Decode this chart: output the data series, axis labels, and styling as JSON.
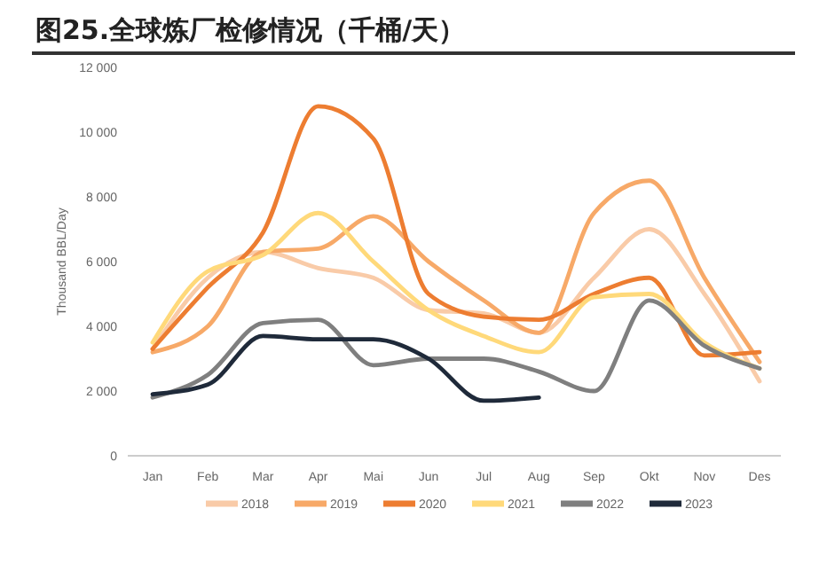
{
  "chart_data": {
    "type": "line",
    "title": "图25.全球炼厂检修情况（千桶/天）",
    "ylabel": "Thousand BBL/Day",
    "categories": [
      "Jan",
      "Feb",
      "Mar",
      "Apr",
      "Mai",
      "Jun",
      "Jul",
      "Aug",
      "Sep",
      "Okt",
      "Nov",
      "Des"
    ],
    "ylim": [
      0,
      12000
    ],
    "yticks": [
      {
        "value": 0,
        "label": "0"
      },
      {
        "value": 2000,
        "label": "2 000"
      },
      {
        "value": 4000,
        "label": "4 000"
      },
      {
        "value": 6000,
        "label": "6 000"
      },
      {
        "value": 8000,
        "label": "8 000"
      },
      {
        "value": 10000,
        "label": "10 000"
      },
      {
        "value": 12000,
        "label": "12 000"
      }
    ],
    "grid": false,
    "legend": "bottom",
    "marker": "none",
    "line_style": "solid",
    "series": [
      {
        "name": "2018",
        "color": "#f9cba8",
        "values": [
          3300,
          5500,
          6300,
          5800,
          5500,
          4500,
          4400,
          3800,
          5500,
          7000,
          5000,
          2300
        ]
      },
      {
        "name": "2019",
        "color": "#f7a968",
        "values": [
          3200,
          4000,
          6300,
          6400,
          7400,
          6000,
          4800,
          3800,
          7500,
          8500,
          5500,
          2900
        ]
      },
      {
        "name": "2020",
        "color": "#ed7d31",
        "values": [
          3300,
          5200,
          6900,
          10800,
          9800,
          5000,
          4300,
          4200,
          5000,
          5500,
          3100,
          3200
        ]
      },
      {
        "name": "2021",
        "color": "#ffd97a",
        "values": [
          3500,
          5700,
          6200,
          7500,
          6000,
          4500,
          3700,
          3200,
          4900,
          5000,
          3500,
          2700
        ]
      },
      {
        "name": "2022",
        "color": "#7f7f7f",
        "values": [
          1800,
          2500,
          4100,
          4200,
          2800,
          3000,
          3000,
          2600,
          2000,
          4800,
          3400,
          2700
        ]
      },
      {
        "name": "2023",
        "color": "#1f2a3a",
        "values": [
          1900,
          2200,
          3700,
          3600,
          3600,
          3000,
          1700,
          1800,
          null,
          null,
          null,
          null
        ]
      }
    ]
  }
}
